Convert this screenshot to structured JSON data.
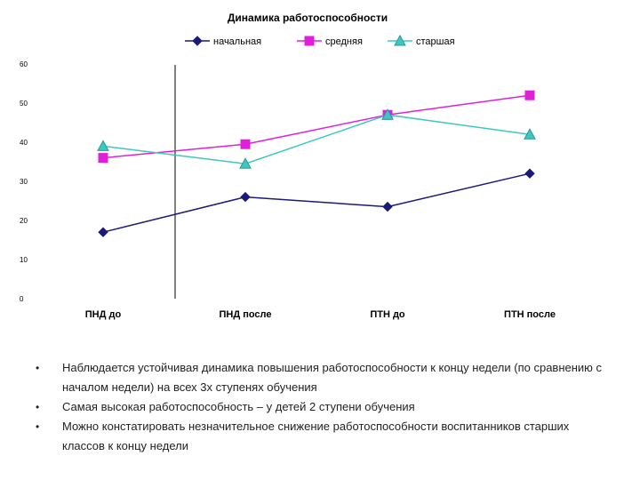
{
  "chart_data": {
    "type": "line",
    "title": "Динамика работоспособности",
    "categories": [
      "ПНД до",
      "ПНД после",
      "ПТН до",
      "ПТН после"
    ],
    "ylim": [
      0,
      60
    ],
    "yticks": [
      0,
      10,
      20,
      30,
      40,
      50,
      60
    ],
    "grid": false,
    "legend": "top",
    "xlabel": "",
    "ylabel": "",
    "series": [
      {
        "name": "начальная",
        "values": [
          17,
          26,
          23.5,
          32
        ],
        "color": "#1a1a7a",
        "marker": "diamond"
      },
      {
        "name": "средняя",
        "values": [
          36,
          39.5,
          47,
          52
        ],
        "color": "#e020d8",
        "marker": "square"
      },
      {
        "name": "старшая",
        "values": [
          39,
          34.5,
          47,
          42
        ],
        "color": "#3cc8c0",
        "marker": "triangle"
      }
    ]
  },
  "bullets": {
    "symbol": "•",
    "items": [
      "Наблюдается устойчивая динамика повышения работоспособности к концу недели (по сравнению с началом недели) на всех 3х ступенях обучения",
      "Самая высокая работоспособность – у детей 2 ступени обучения",
      "Можно констатировать незначительное снижение работоспособности воспитанников старших классов к концу недели"
    ]
  }
}
